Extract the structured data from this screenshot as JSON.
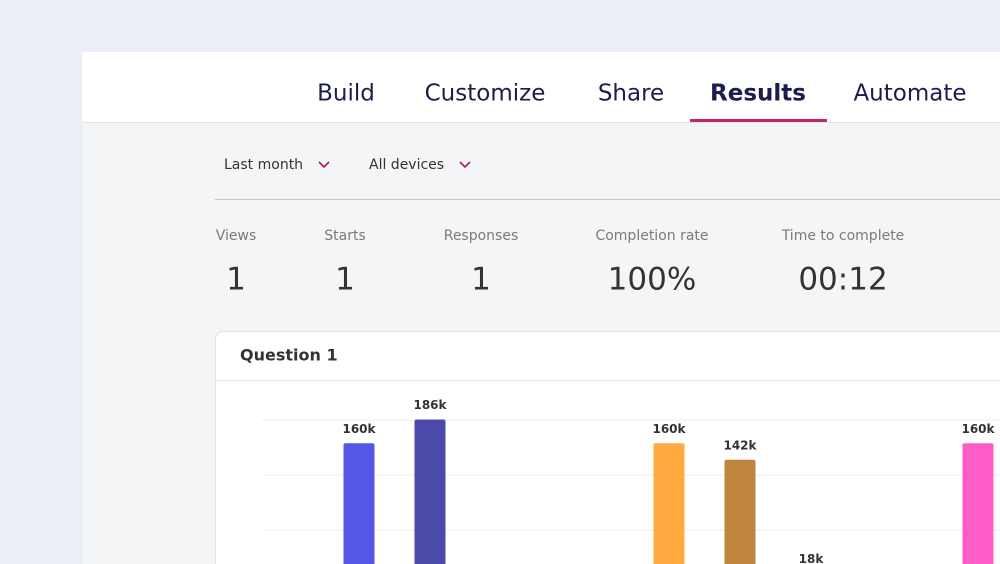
{
  "nav": {
    "tabs": [
      "Build",
      "Customize",
      "Share",
      "Results",
      "Automate"
    ],
    "active": "Results"
  },
  "filters": [
    "Last month",
    "All devices"
  ],
  "stats": [
    {
      "label": "Views",
      "value": "1"
    },
    {
      "label": "Starts",
      "value": "1"
    },
    {
      "label": "Responses",
      "value": "1"
    },
    {
      "label": "Completion rate",
      "value": "100%"
    },
    {
      "label": "Time to complete",
      "value": "00:12"
    }
  ],
  "question": {
    "title": "Question 1"
  },
  "chart_data": {
    "type": "bar",
    "categories": [
      null,
      null,
      null,
      null,
      null,
      null
    ],
    "values": [
      160000,
      186000,
      160000,
      142000,
      18000,
      160000
    ],
    "value_labels": [
      "160k",
      "186k",
      "160k",
      "142k",
      "18k",
      "160k"
    ],
    "colors": [
      "#5457e3",
      "#4b4aab",
      "#ffab40",
      "#c0853c",
      "#9a6bd6",
      "#ff5cc8"
    ],
    "ylim": [
      0,
      200000
    ],
    "yticks": [
      0,
      60000,
      120000,
      180000
    ],
    "grid": true
  }
}
